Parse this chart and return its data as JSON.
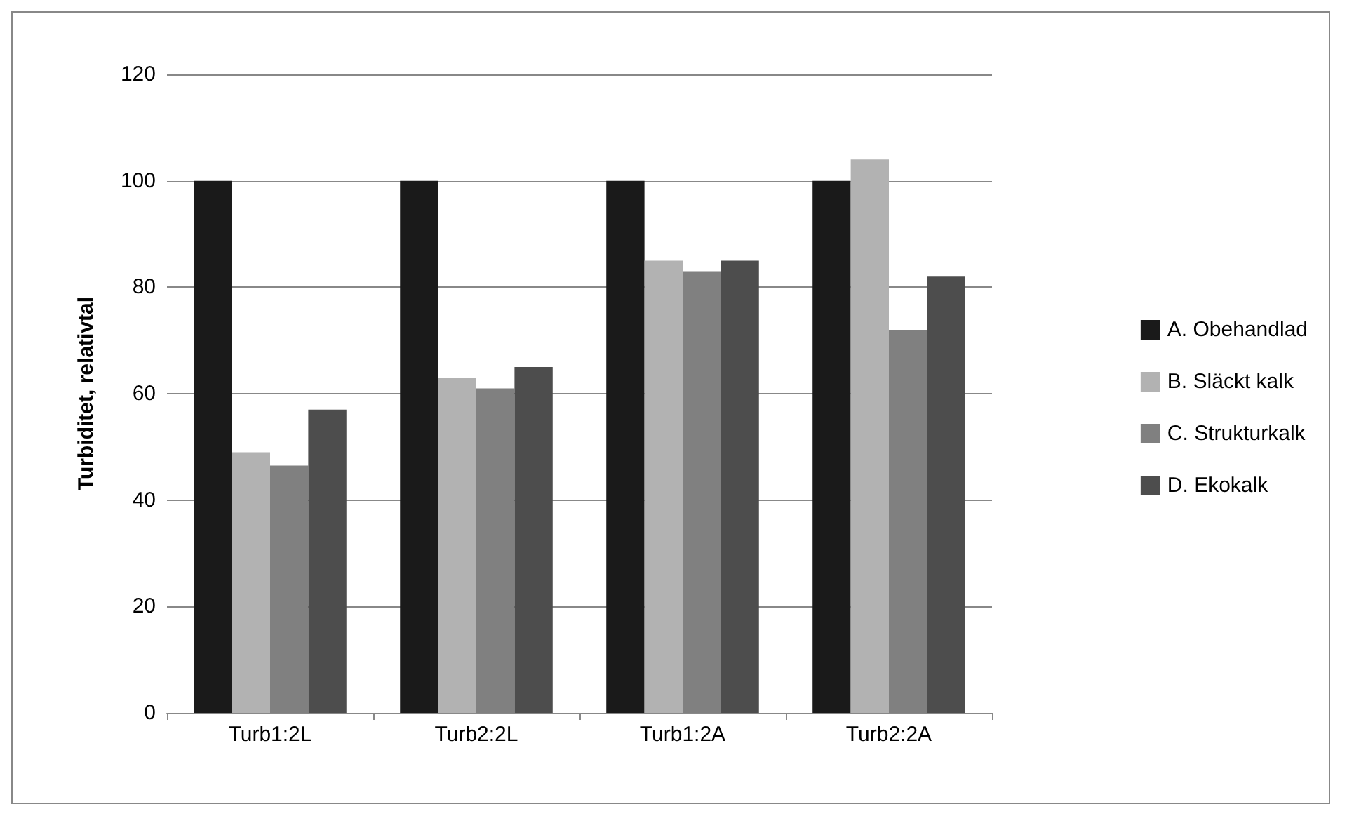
{
  "chart_data": {
    "type": "bar",
    "ylabel": "Turbiditet, relativtal",
    "categories": [
      "Turb1:2L",
      "Turb2:2L",
      "Turb1:2A",
      "Turb2:2A"
    ],
    "series": [
      {
        "name": "A. Obehandlad",
        "color": "#1a1a1a",
        "values": [
          100,
          100,
          100,
          100
        ]
      },
      {
        "name": "B. Släckt kalk",
        "color": "#b2b2b2",
        "values": [
          49,
          63,
          85,
          104
        ]
      },
      {
        "name": "C. Strukturkalk",
        "color": "#808080",
        "values": [
          46.5,
          61,
          83,
          72
        ]
      },
      {
        "name": "D. Ekokalk",
        "color": "#4d4d4d",
        "values": [
          57,
          65,
          85,
          82
        ]
      }
    ],
    "ylim": [
      0,
      120
    ],
    "yticks": [
      0,
      20,
      40,
      60,
      80,
      100,
      120
    ],
    "grid": "y",
    "legend": "right"
  }
}
